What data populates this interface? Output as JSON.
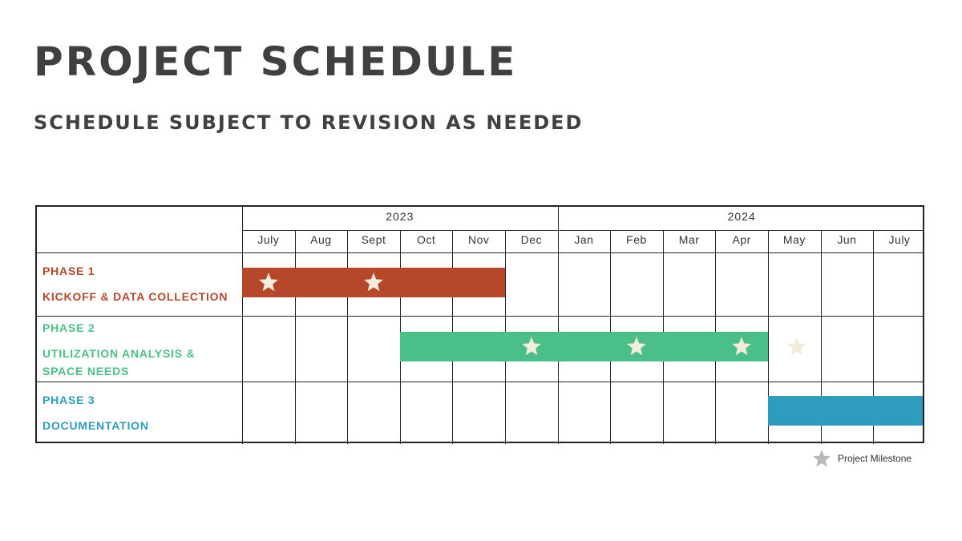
{
  "title": "PROJECT SCHEDULE",
  "subtitle": "SCHEDULE SUBJECT TO REVISION AS NEEDED",
  "years": [
    {
      "label": "2023"
    },
    {
      "label": "2024"
    }
  ],
  "months": [
    "July",
    "Aug",
    "Sept",
    "Oct",
    "Nov",
    "Dec",
    "Jan",
    "Feb",
    "Mar",
    "Apr",
    "May",
    "Jun",
    "July"
  ],
  "phases": [
    {
      "phase": "PHASE 1",
      "name_lines": [
        "KICKOFF & DATA COLLECTION"
      ],
      "color": "#b5472a",
      "start_month": "July 2023",
      "end_month": "Nov 2023",
      "milestones": 2
    },
    {
      "phase": "PHASE 2",
      "name_lines": [
        "UTILIZATION ANALYSIS &",
        "SPACE NEEDS"
      ],
      "color": "#4abf87",
      "start_month": "Oct 2023",
      "end_month": "Apr 2024",
      "milestones": 4
    },
    {
      "phase": "PHASE 3",
      "name_lines": [
        "DOCUMENTATION"
      ],
      "color": "#2e9cbc",
      "start_month": "May 2024",
      "end_month": "July 2024",
      "milestones": 0
    }
  ],
  "legend": {
    "icon": "star-icon",
    "label": "Project Milestone",
    "color": "#b8b8b8"
  },
  "milestone_color": "#f3ecdc"
}
